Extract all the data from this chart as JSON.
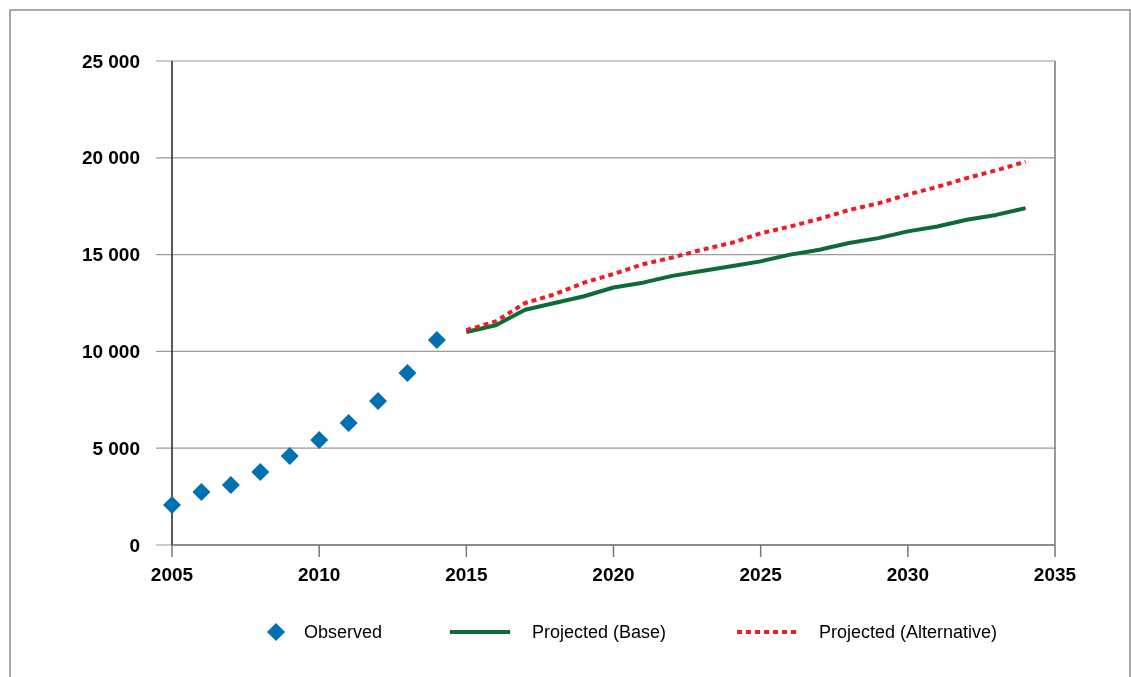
{
  "chart_data": {
    "type": "line",
    "xlim": [
      2005,
      2035
    ],
    "xticks": [
      2005,
      2010,
      2015,
      2020,
      2025,
      2030,
      2035
    ],
    "ylim": [
      0,
      25000
    ],
    "yticks": [
      0,
      {
        "value": 5000,
        "label": "5 000"
      },
      {
        "value": 10000,
        "label": "10 000"
      },
      {
        "value": 15000,
        "label": "15 000"
      },
      {
        "value": 20000,
        "label": "20 000"
      },
      {
        "value": 25000,
        "label": "25 000"
      }
    ],
    "grid": "y",
    "legend": "bottom",
    "series": [
      {
        "name": "Observed",
        "type": "scatter",
        "marker": "diamond",
        "color": "#0070b0",
        "x": [
          2005,
          2006,
          2007,
          2008,
          2009,
          2010,
          2011,
          2012,
          2013,
          2014
        ],
        "values": [
          2070,
          2740,
          3100,
          3770,
          4600,
          5420,
          6300,
          7440,
          8880,
          10590
        ]
      },
      {
        "name": "Projected (Base)",
        "line_style": "solid",
        "color": "#0e6b35",
        "x": [
          2015,
          2016,
          2017,
          2018,
          2019,
          2020,
          2021,
          2022,
          2023,
          2024,
          2025,
          2026,
          2027,
          2028,
          2029,
          2030,
          2031,
          2032,
          2033,
          2034
        ],
        "values": [
          11000,
          11350,
          12150,
          12500,
          12850,
          13300,
          13550,
          13900,
          14150,
          14400,
          14650,
          15000,
          15250,
          15600,
          15850,
          16200,
          16450,
          16800,
          17050,
          17400
        ]
      },
      {
        "name": "Projected (Alternative)",
        "line_style": "dotted",
        "color": "#ee1c25",
        "x": [
          2015,
          2016,
          2017,
          2018,
          2019,
          2020,
          2021,
          2022,
          2023,
          2024,
          2025,
          2026,
          2027,
          2028,
          2029,
          2030,
          2031,
          2032,
          2033,
          2034
        ],
        "values": [
          11100,
          11550,
          12500,
          12950,
          13550,
          14000,
          14500,
          14850,
          15250,
          15600,
          16100,
          16450,
          16850,
          17300,
          17650,
          18100,
          18500,
          18950,
          19350,
          19800
        ]
      }
    ]
  }
}
